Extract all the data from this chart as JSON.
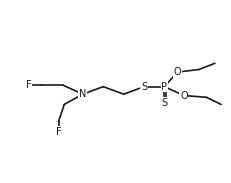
{
  "background_color": "#ffffff",
  "line_color": "#1a1a1a",
  "text_color": "#1a1a1a",
  "font_size": 7.0,
  "line_width": 1.2,
  "figsize": [
    2.31,
    1.83
  ],
  "dpi": 100,
  "xlim": [
    0.0,
    1.0
  ],
  "ylim": [
    0.0,
    1.0
  ]
}
